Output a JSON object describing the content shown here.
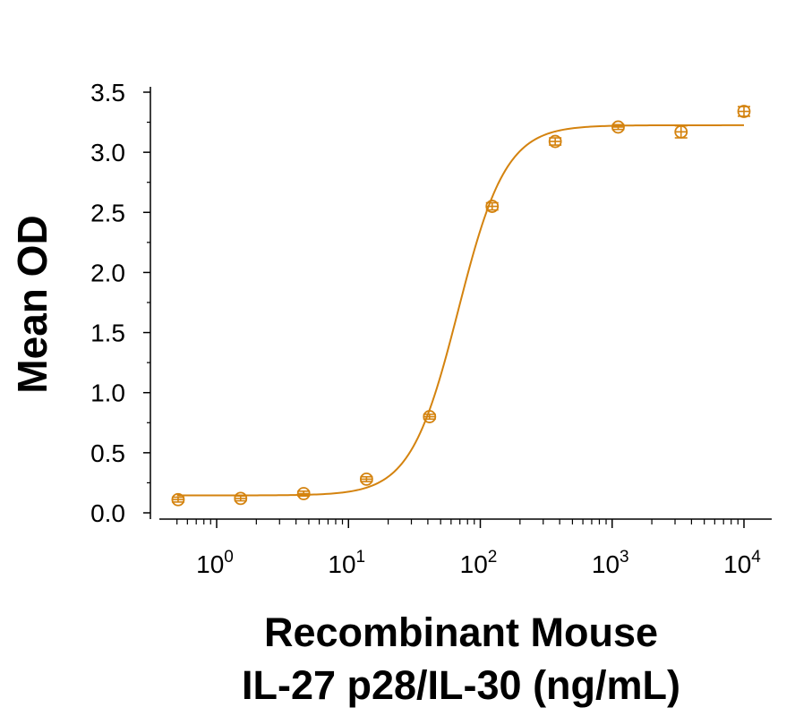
{
  "chart_data": {
    "type": "scatter",
    "xlabel_line1": "Recombinant Mouse",
    "xlabel_line2": "IL-27 p28/IL-30 (ng/mL)",
    "ylabel": "Mean OD",
    "xscale": "log",
    "xlim": [
      0.4,
      14000
    ],
    "ylim": [
      0,
      3.5
    ],
    "yticks": [
      "0.0",
      "0.5",
      "1.0",
      "1.5",
      "2.0",
      "2.5",
      "3.0",
      "3.5"
    ],
    "xticks": [
      {
        "base": "10",
        "exp": "0"
      },
      {
        "base": "10",
        "exp": "1"
      },
      {
        "base": "10",
        "exp": "2"
      },
      {
        "base": "10",
        "exp": "3"
      },
      {
        "base": "10",
        "exp": "4"
      }
    ],
    "grid": false,
    "color": "#d4830f",
    "points": [
      {
        "x": 0.51,
        "y": 0.11,
        "err": 0.02
      },
      {
        "x": 1.52,
        "y": 0.12,
        "err": 0.02
      },
      {
        "x": 4.57,
        "y": 0.16,
        "err": 0.02
      },
      {
        "x": 13.7,
        "y": 0.28,
        "err": 0.02
      },
      {
        "x": 41.2,
        "y": 0.8,
        "err": 0.02
      },
      {
        "x": 123,
        "y": 2.55,
        "err": 0.03
      },
      {
        "x": 370,
        "y": 3.09,
        "err": 0.03
      },
      {
        "x": 1111,
        "y": 3.21,
        "err": 0.02
      },
      {
        "x": 3333,
        "y": 3.17,
        "err": 0.05
      },
      {
        "x": 10000,
        "y": 3.34,
        "err": 0.04
      }
    ],
    "fit": {
      "model": "4PL",
      "bottom": 0.145,
      "top": 3.225,
      "ec50": 68,
      "hill": 2.4
    }
  }
}
